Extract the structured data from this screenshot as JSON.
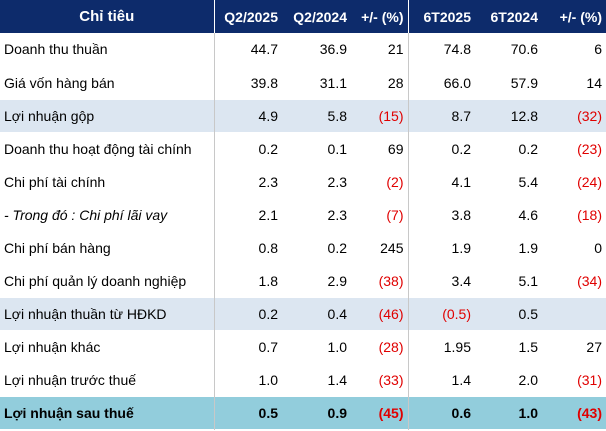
{
  "header": {
    "label": "Chỉ tiêu",
    "q2_2025": "Q2/2025",
    "q2_2024": "Q2/2024",
    "q_change": "+/- (%)",
    "h1_2025": "6T2025",
    "h1_2024": "6T2024",
    "h_change": "+/- (%)"
  },
  "rows": [
    {
      "label": "Doanh thu thuần",
      "q2_2025": "44.7",
      "q2_2024": "36.9",
      "q_change": "21",
      "h1_2025": "74.8",
      "h1_2024": "70.6",
      "h_change": "6"
    },
    {
      "label": "Giá vốn hàng bán",
      "q2_2025": "39.8",
      "q2_2024": "31.1",
      "q_change": "28",
      "h1_2025": "66.0",
      "h1_2024": "57.9",
      "h_change": "14"
    },
    {
      "label": "Lợi nhuận gộp",
      "q2_2025": "4.9",
      "q2_2024": "5.8",
      "q_change": "(15)",
      "h1_2025": "8.7",
      "h1_2024": "12.8",
      "h_change": "(32)"
    },
    {
      "label": "Doanh thu hoạt động tài chính",
      "q2_2025": "0.2",
      "q2_2024": "0.1",
      "q_change": "69",
      "h1_2025": "0.2",
      "h1_2024": "0.2",
      "h_change": "(23)"
    },
    {
      "label": "Chi phí tài chính",
      "q2_2025": "2.3",
      "q2_2024": "2.3",
      "q_change": "(2)",
      "h1_2025": "4.1",
      "h1_2024": "5.4",
      "h_change": "(24)"
    },
    {
      "label": "- Trong đó : Chi phí lãi vay",
      "q2_2025": "2.1",
      "q2_2024": "2.3",
      "q_change": "(7)",
      "h1_2025": "3.8",
      "h1_2024": "4.6",
      "h_change": "(18)"
    },
    {
      "label": "Chi phí bán hàng",
      "q2_2025": "0.8",
      "q2_2024": "0.2",
      "q_change": "245",
      "h1_2025": "1.9",
      "h1_2024": "1.9",
      "h_change": "0"
    },
    {
      "label": "Chi phí quản lý doanh nghiệp",
      "q2_2025": "1.8",
      "q2_2024": "2.9",
      "q_change": "(38)",
      "h1_2025": "3.4",
      "h1_2024": "5.1",
      "h_change": "(34)"
    },
    {
      "label": "Lợi nhuận thuần từ HĐKD",
      "q2_2025": "0.2",
      "q2_2024": "0.4",
      "q_change": "(46)",
      "h1_2025": "(0.5)",
      "h1_2024": "0.5",
      "h_change": ""
    },
    {
      "label": "Lợi nhuận khác",
      "q2_2025": "0.7",
      "q2_2024": "1.0",
      "q_change": "(28)",
      "h1_2025": "1.95",
      "h1_2024": "1.5",
      "h_change": "27"
    },
    {
      "label": "Lợi nhuận trước thuế",
      "q2_2025": "1.0",
      "q2_2024": "1.4",
      "q_change": "(33)",
      "h1_2025": "1.4",
      "h1_2024": "2.0",
      "h_change": "(31)"
    },
    {
      "label": "Lợi nhuận sau thuế",
      "q2_2025": "0.5",
      "q2_2024": "0.9",
      "q_change": "(45)",
      "h1_2025": "0.6",
      "h1_2024": "1.0",
      "h_change": "(43)"
    }
  ],
  "colors": {
    "header_bg": "#0d2b6b",
    "shaded_row": "#dce6f1",
    "total_row": "#92cddc",
    "negative_text": "#e00000"
  }
}
